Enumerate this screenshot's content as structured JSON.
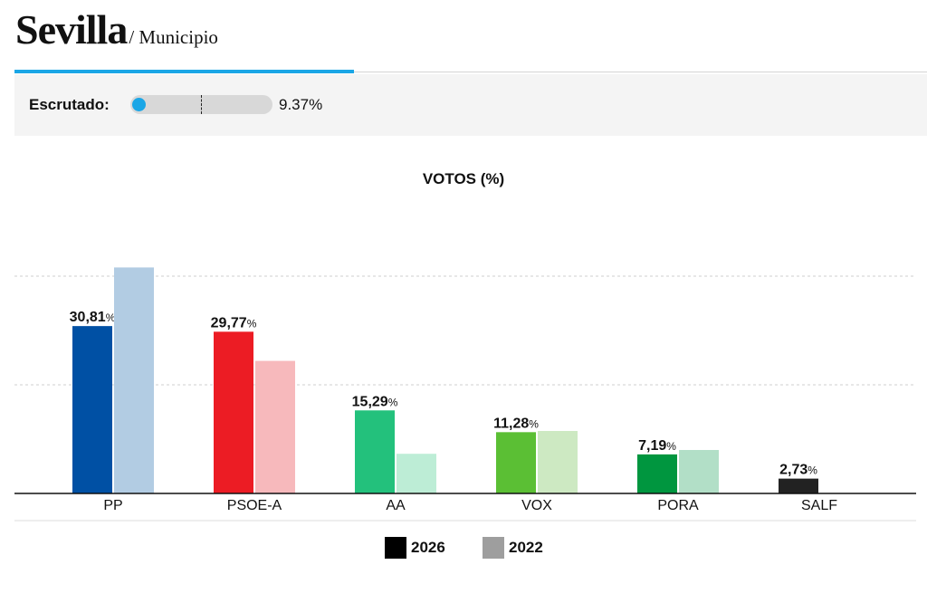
{
  "header": {
    "title": "Sevilla",
    "subtitle": "/ Municipio"
  },
  "scrutiny": {
    "label": "Escrutado:",
    "value_text": "9.37%",
    "progress_fraction": 0.0937,
    "accent_color": "#1aa6e6"
  },
  "chart_data": {
    "type": "bar",
    "title": "VOTOS (%)",
    "xlabel": "",
    "ylabel": "",
    "ylim": [
      0,
      40
    ],
    "grid": true,
    "legend_position": "bottom-center",
    "categories": [
      "PP",
      "PSOE-A",
      "AA",
      "VOX",
      "PORA",
      "SALF"
    ],
    "series": [
      {
        "name": "2026",
        "values": [
          30.81,
          29.77,
          15.29,
          11.28,
          7.19,
          2.73
        ],
        "labels": [
          "30,81",
          "29,77",
          "15,29",
          "11,28",
          "7,19",
          "2,73"
        ],
        "label_suffix": "%",
        "colors": [
          "#0050a4",
          "#ec1c24",
          "#23c17c",
          "#5bbf34",
          "#00963f",
          "#222222"
        ]
      },
      {
        "name": "2022",
        "values": [
          41.6,
          24.4,
          7.3,
          11.5,
          8.0,
          null
        ],
        "colors": [
          "#b2cce3",
          "#f7b9bc",
          "#bdedd6",
          "#cde9c2",
          "#b2dfc7",
          "#bdbdbd"
        ]
      }
    ]
  },
  "legend": {
    "items": [
      {
        "label": "2026",
        "color": "#000000"
      },
      {
        "label": "2022",
        "color": "#9e9e9e"
      }
    ]
  }
}
